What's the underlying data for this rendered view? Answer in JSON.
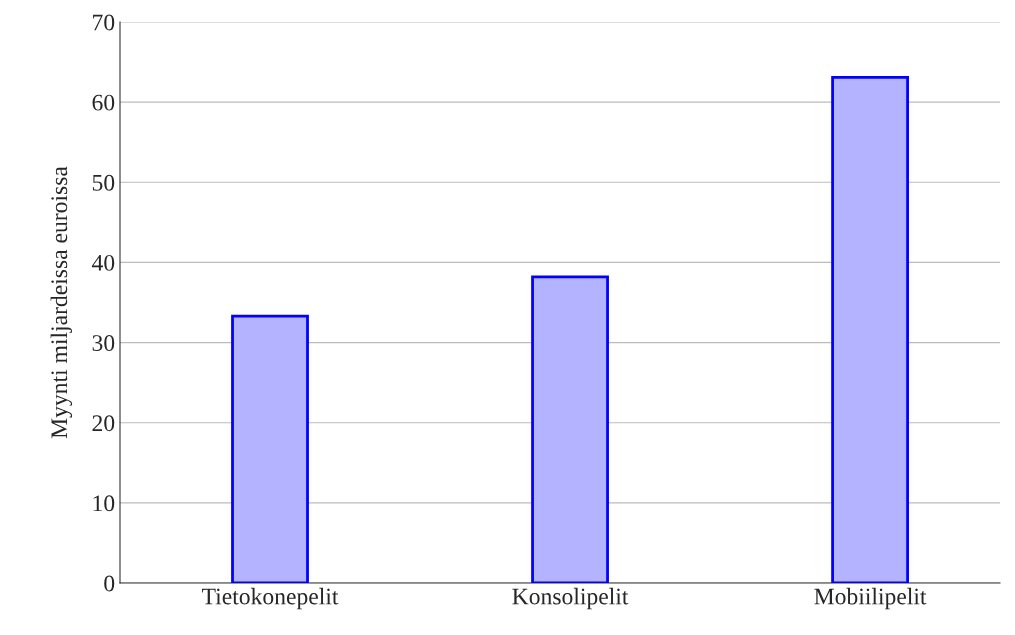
{
  "chart_data": {
    "type": "bar",
    "ylabel": "Myynti miljardeissa euroissa",
    "categories": [
      "Tietokonepelit",
      "Konsolipelit",
      "Mobiilipelit"
    ],
    "values": [
      33.3,
      38.2,
      63.1
    ],
    "color": "#b3b3ff",
    "ylim": [
      0,
      70
    ],
    "yticks": [
      0,
      10,
      20,
      30,
      40,
      50,
      60,
      70
    ],
    "grid": "y",
    "legend": false
  }
}
